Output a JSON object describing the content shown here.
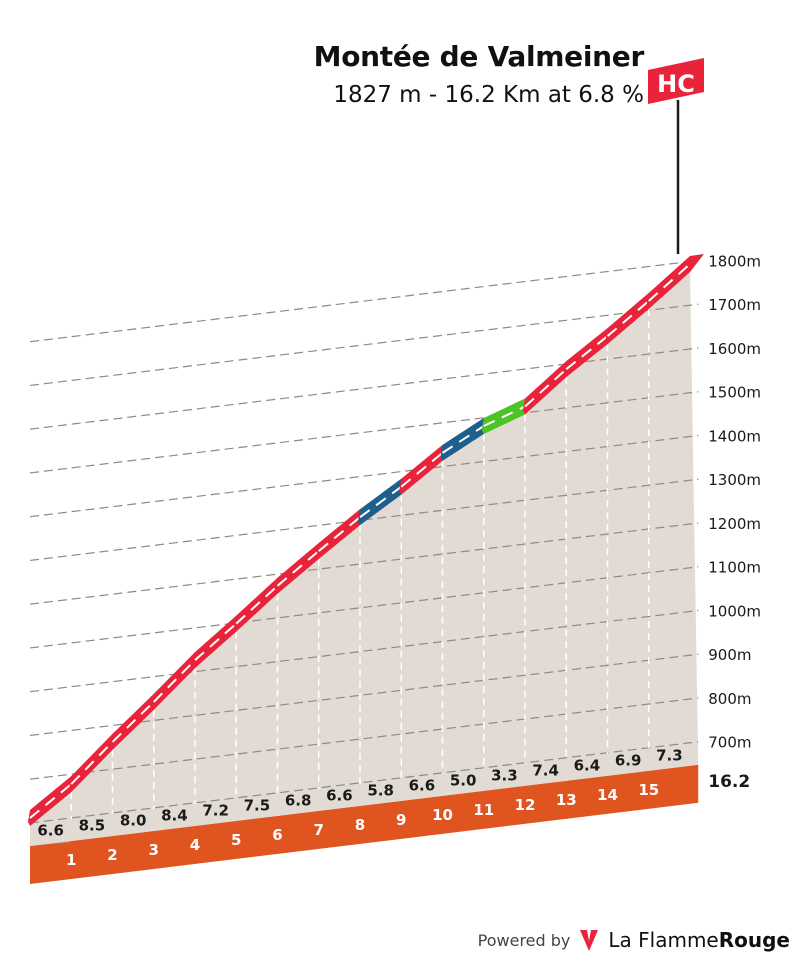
{
  "title": "Montée de Valmeiner",
  "subtitle": "1827 m - 16.2 Km at 6.8 %",
  "category_badge": "HC",
  "end_label": "16.2",
  "footer": {
    "powered": "Powered by",
    "brand_a": "La Flamme",
    "brand_b": "Rouge",
    "logo_icon": "flame-logo-icon"
  },
  "colors": {
    "steep": "#e8233a",
    "blue": "#1f5f8b",
    "green": "#4cc427",
    "ground": "#e1dbd3",
    "base": "#e0541f",
    "badge": "#e8233a"
  },
  "chart_data": {
    "type": "area",
    "title": "Montée de Valmeiner",
    "subtitle": "1827 m - 16.2 Km at 6.8 %",
    "y_unit": "m",
    "ylim": [
      600,
      1800
    ],
    "y_ticks": [
      {
        "value": 700,
        "label": "700m"
      },
      {
        "value": 800,
        "label": "800m"
      },
      {
        "value": 900,
        "label": "900m"
      },
      {
        "value": 1000,
        "label": "1000m"
      },
      {
        "value": 1100,
        "label": "1100m"
      },
      {
        "value": 1200,
        "label": "1200m"
      },
      {
        "value": 1300,
        "label": "1300m"
      },
      {
        "value": 1400,
        "label": "1400m"
      },
      {
        "value": 1500,
        "label": "1500m"
      },
      {
        "value": 1600,
        "label": "1600m"
      },
      {
        "value": 1700,
        "label": "1700m"
      },
      {
        "value": 1800,
        "label": "1800m"
      }
    ],
    "km_labels": [
      "1",
      "2",
      "3",
      "4",
      "5",
      "6",
      "7",
      "8",
      "9",
      "10",
      "11",
      "12",
      "13",
      "14",
      "15"
    ],
    "gradients": [
      6.6,
      8.5,
      8.0,
      8.4,
      7.2,
      7.5,
      6.8,
      6.6,
      5.8,
      6.6,
      5.0,
      3.3,
      7.4,
      6.4,
      6.9,
      7.3
    ],
    "gradient_labels": [
      "6.6",
      "8.5",
      "8.0",
      "8.4",
      "7.2",
      "7.5",
      "6.8",
      "6.6",
      "5.8",
      "6.6",
      "5.0",
      "3.3",
      "7.4",
      "6.4",
      "6.9",
      "7.3"
    ],
    "segment_categories": [
      "red",
      "red",
      "red",
      "red",
      "red",
      "red",
      "red",
      "red",
      "blue",
      "red",
      "blue",
      "green",
      "red",
      "red",
      "red",
      "red"
    ],
    "elevation_start": 725,
    "total_km": 16.2,
    "summit_elevation": 1827,
    "grid": true
  }
}
